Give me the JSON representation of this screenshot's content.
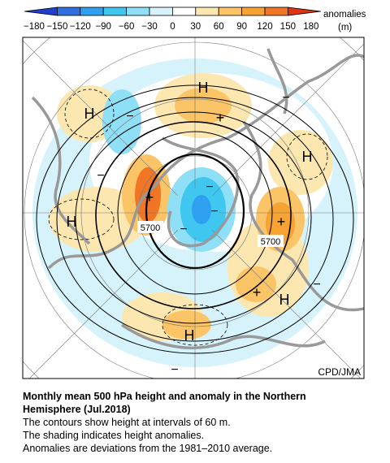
{
  "colorbar": {
    "labels": [
      "−180",
      "−150",
      "−120",
      "−90",
      "−60",
      "−30",
      "0",
      "30",
      "60",
      "90",
      "120",
      "150",
      "180"
    ],
    "title": "anomalies",
    "unit": "(m)"
  },
  "map": {
    "highs": [
      "H",
      "H",
      "H",
      "H",
      "H",
      "H"
    ],
    "plus": [
      "+",
      "+",
      "+",
      "+"
    ],
    "minus": [
      "−",
      "−",
      "−",
      "−",
      "−",
      "−",
      "−",
      "−"
    ],
    "contour_labels": [
      "5700",
      "5700"
    ],
    "credit": "CPD/JMA"
  },
  "caption": {
    "title": [
      "Monthly mean 500 hPa height and anomaly in the Northern",
      "Hemisphere (Jul.2018)"
    ],
    "lines": [
      "The contours show height at intervals of 60 m.",
      "The shading indicates height anomalies.",
      "Anomalies are deviations from the 1981–2010 average."
    ]
  }
}
